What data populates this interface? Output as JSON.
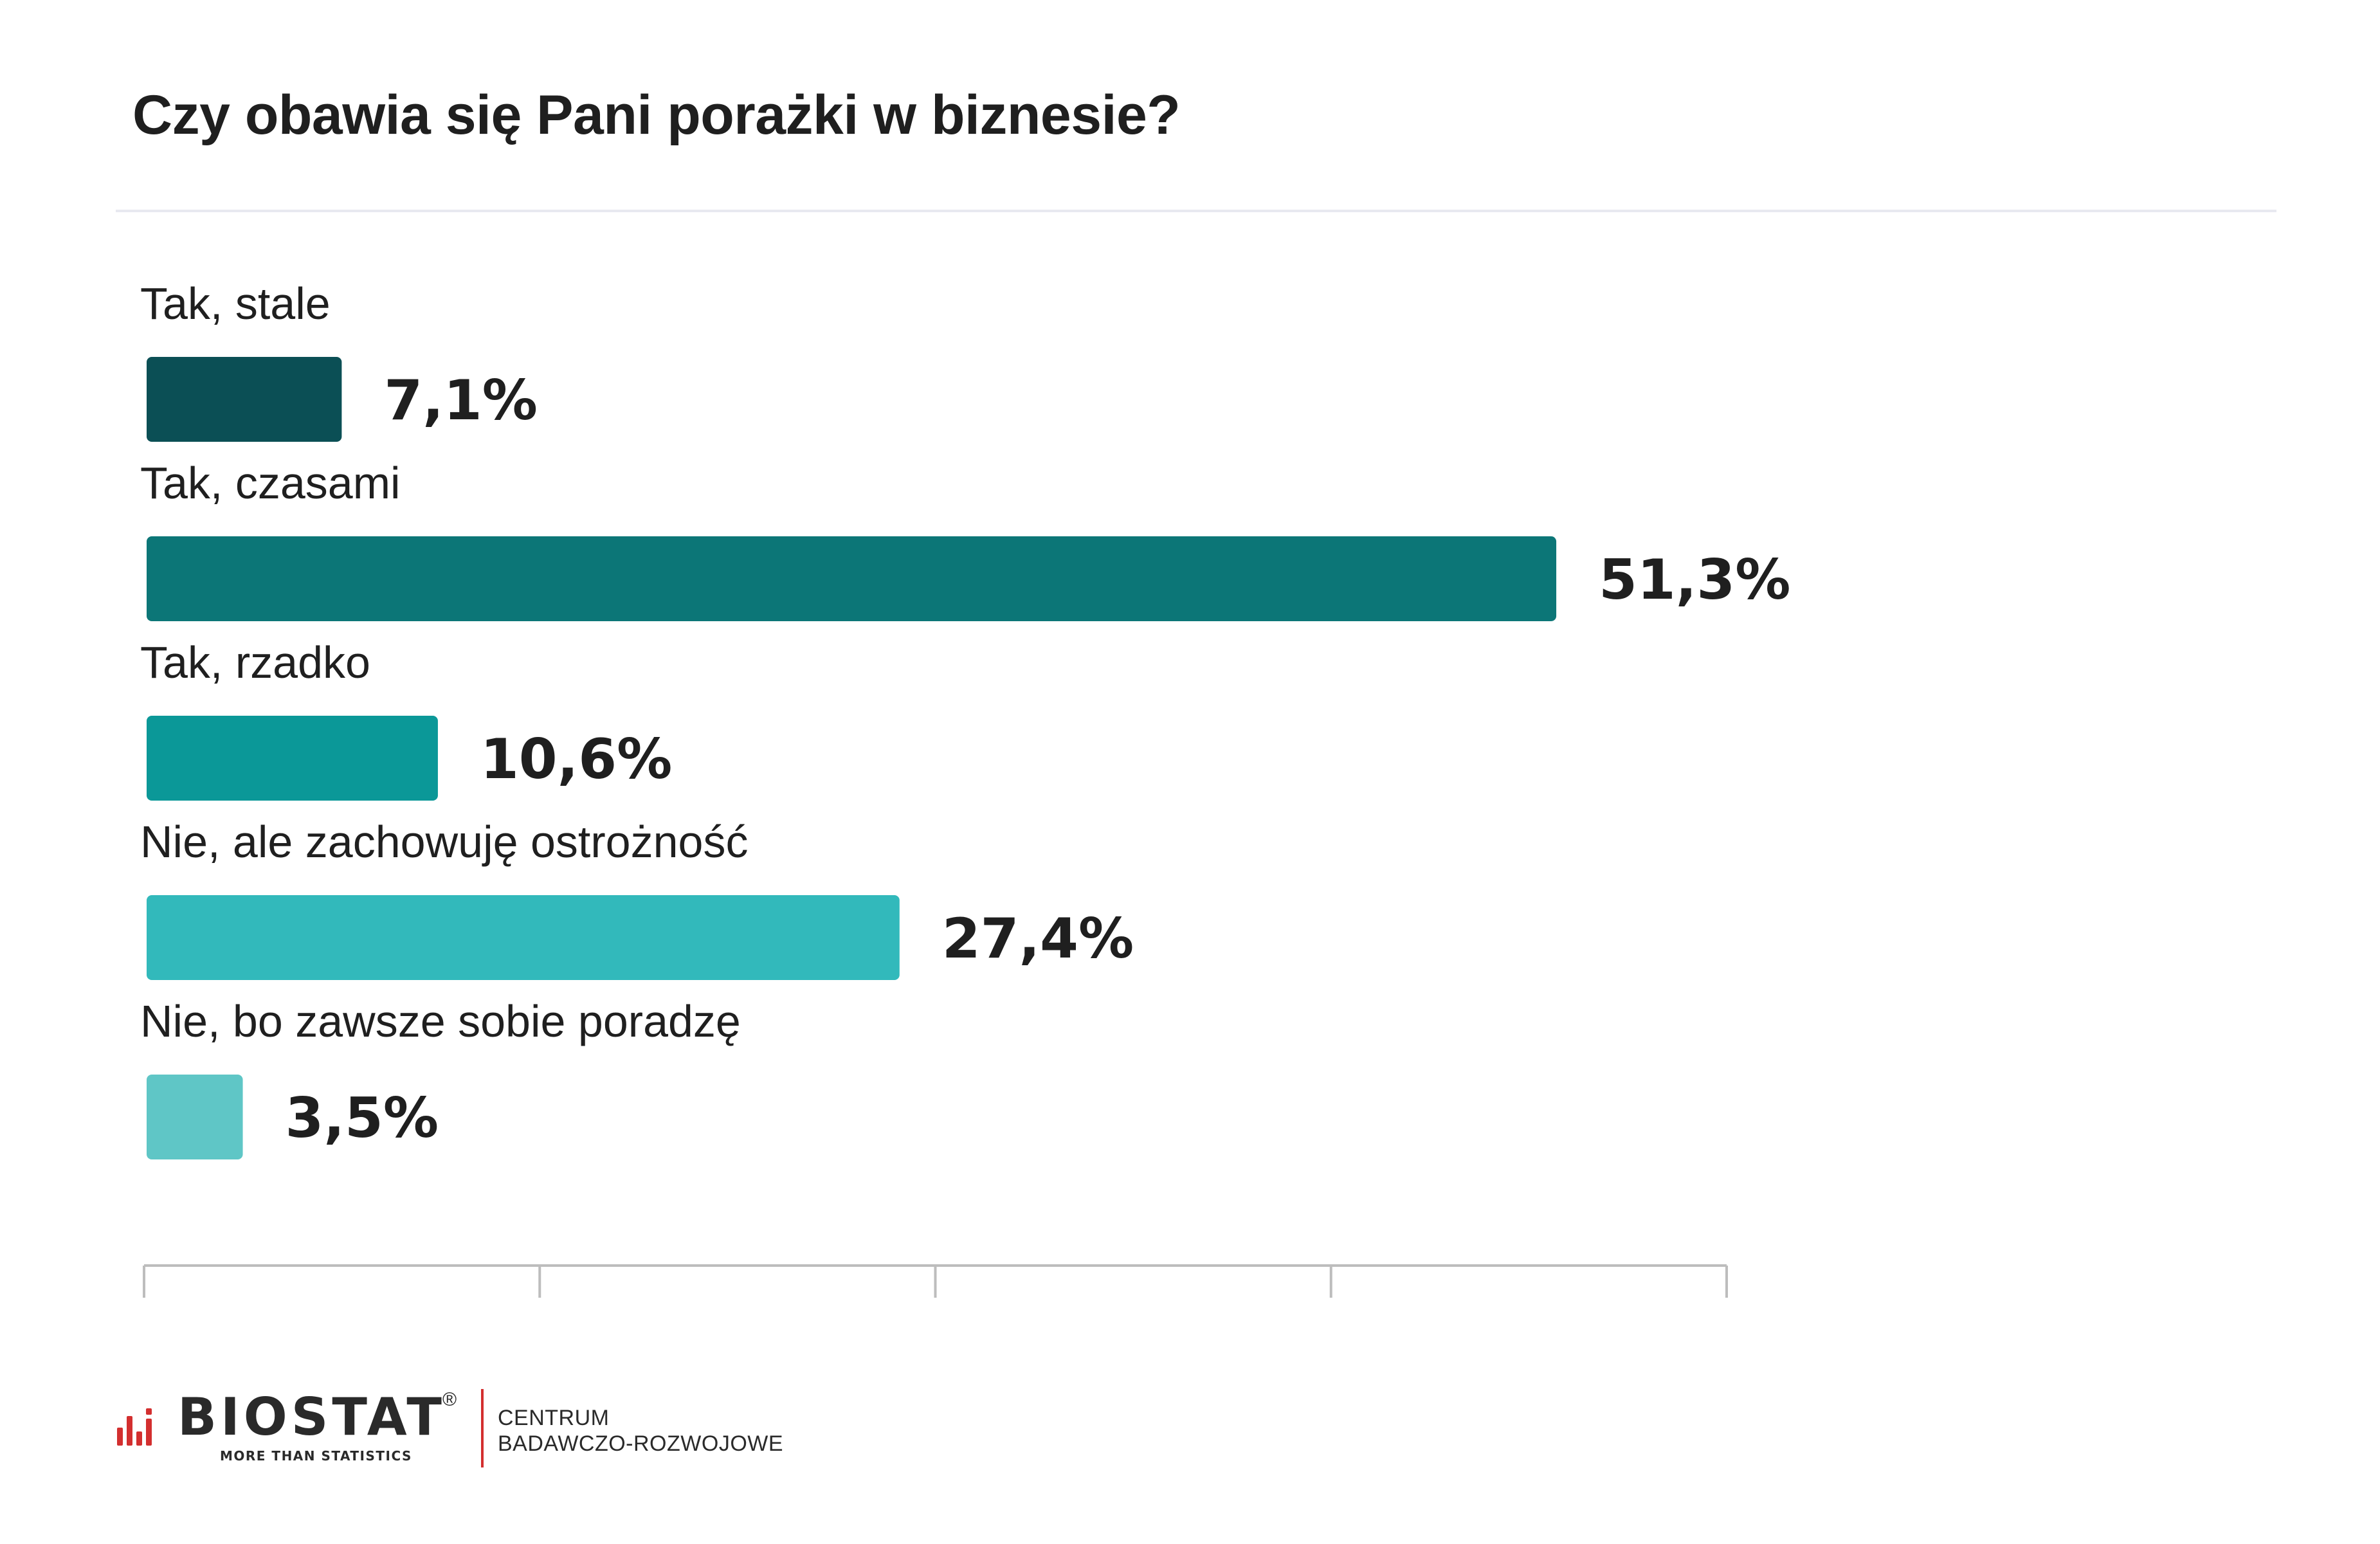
{
  "chart_data": {
    "type": "bar",
    "orientation": "horizontal",
    "title": "Czy obawia się Pani porażki w biznesie?",
    "categories": [
      "Tak, stale",
      "Tak, czasami",
      "Tak, rzadko",
      "Nie, ale zachowuję ostrożność",
      "Nie, bo zawsze sobie poradzę"
    ],
    "values": [
      7.1,
      51.3,
      10.6,
      27.4,
      3.5
    ],
    "value_labels": [
      "7,1%",
      "51,3%",
      "10,6%",
      "27,4%",
      "3,5%"
    ],
    "colors": [
      "#0b4f55",
      "#0c7677",
      "#0b9898",
      "#32b9bb",
      "#5fc6c6"
    ],
    "xlim": [
      0,
      57.5
    ],
    "grid": false,
    "legend": "none"
  },
  "footer": {
    "logo_text": "BIOSTAT",
    "logo_registered": "®",
    "logo_tagline": "MORE THAN STATISTICS",
    "org_line1": "CENTRUM",
    "org_line2": "BADAWCZO-ROZWOJOWE",
    "accent_color": "#d32f2f"
  }
}
